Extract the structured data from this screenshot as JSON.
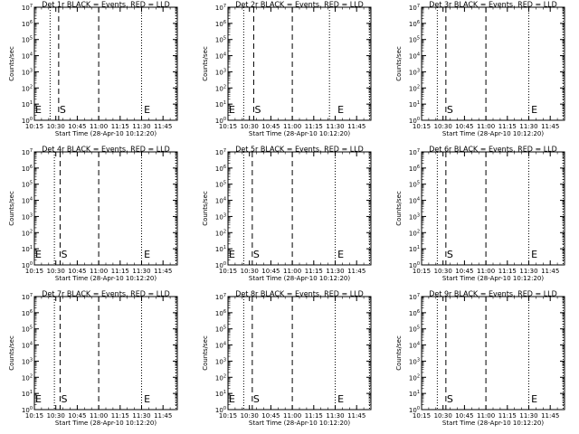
{
  "chart_data": {
    "type": "line",
    "ylabel": "Counts/sec",
    "xlabel_prefix": "Start Time",
    "start_time": "(28-Apr-10 10:12:20)",
    "xlabel": "Start Time (28-Apr-10 10:12:20)",
    "xlim": [
      "10:15",
      "11:55"
    ],
    "y_scale": "log",
    "ylim": [
      1,
      10000000
    ],
    "y_tick_labels": [
      "10^0",
      "10^1",
      "10^2",
      "10^3",
      "10^4",
      "10^5",
      "10^6",
      "10^7"
    ],
    "x_tick_labels": [
      "10:15",
      "10:30",
      "10:45",
      "11:00",
      "11:15",
      "11:30",
      "11:45"
    ],
    "series_note": "BLACK = Events, RED = LLD",
    "marker_labels": {
      "start": "S",
      "end": "E"
    },
    "panels": [
      {
        "title": "Det 1r BLACK = Events, RED = LLD",
        "dotted": [
          "10:26",
          "11:30",
          "11:54"
        ],
        "dashed": [
          "10:32",
          "11:00"
        ],
        "s_at": "10:32",
        "e_at": "11:31",
        "left_e": true
      },
      {
        "title": "Det 2r BLACK = Events, RED = LLD",
        "dotted": [
          "10:26",
          "11:26",
          "11:54"
        ],
        "dashed": [
          "10:33",
          "11:00"
        ],
        "s_at": "10:33",
        "e_at": "11:31",
        "left_e": true
      },
      {
        "title": "Det 3r BLACK = Events, RED = LLD",
        "dotted": [
          "10:26",
          "11:30",
          "11:54"
        ],
        "dashed": [
          "10:32",
          "11:00"
        ],
        "s_at": "10:32",
        "e_at": "11:31",
        "left_e": false
      },
      {
        "title": "Det 4r BLACK = Events, RED = LLD",
        "dotted": [
          "10:29",
          "11:30",
          "11:54"
        ],
        "dashed": [
          "10:33",
          "11:00"
        ],
        "s_at": "10:33",
        "e_at": "11:31",
        "left_e": true
      },
      {
        "title": "Det 5r BLACK = Events, RED = LLD",
        "dotted": [
          "10:26",
          "11:30",
          "11:54"
        ],
        "dashed": [
          "10:32",
          "11:00"
        ],
        "s_at": "10:32",
        "e_at": "11:31",
        "left_e": true
      },
      {
        "title": "Det 6r BLACK = Events, RED = LLD",
        "dotted": [
          "10:26",
          "11:30",
          "11:54"
        ],
        "dashed": [
          "10:32",
          "11:00"
        ],
        "s_at": "10:32",
        "e_at": "11:31",
        "left_e": false
      },
      {
        "title": "Det 7r BLACK = Events, RED = LLD",
        "dotted": [
          "10:29",
          "11:30",
          "11:54"
        ],
        "dashed": [
          "10:33",
          "11:00"
        ],
        "s_at": "10:33",
        "e_at": "11:31",
        "left_e": true
      },
      {
        "title": "Det 8r BLACK = Events, RED = LLD",
        "dotted": [
          "10:26",
          "11:30",
          "11:54"
        ],
        "dashed": [
          "10:32",
          "11:00"
        ],
        "s_at": "10:32",
        "e_at": "11:31",
        "left_e": true
      },
      {
        "title": "Det 9r BLACK = Events, RED = LLD",
        "dotted": [
          "10:26",
          "11:30",
          "11:54"
        ],
        "dashed": [
          "10:32",
          "11:00"
        ],
        "s_at": "10:32",
        "e_at": "11:31",
        "left_e": false
      }
    ]
  }
}
